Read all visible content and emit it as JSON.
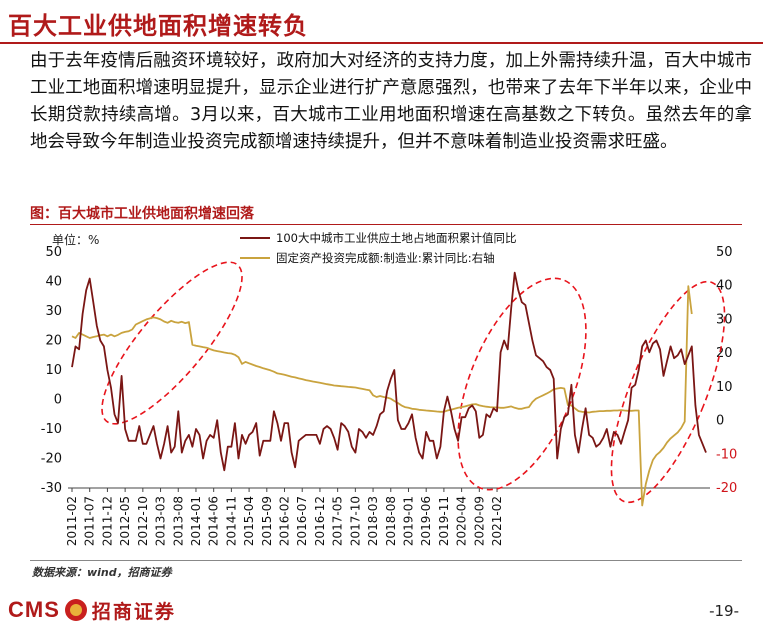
{
  "header": {
    "title": "百大工业供地面积增速转负"
  },
  "body": {
    "paragraph": "由于去年疫情后融资环境较好，政府加大对经济的支持力度，加上外需持续升温，百大中城市工业工地面积增速明显提升，显示企业进行扩产意愿强烈，也带来了去年下半年以来，企业中长期贷款持续高增。3月以来，百大城市工业用地面积增速在高基数之下转负。虽然去年的拿地会导致今年制造业投资完成额增速持续提升，但并不意味着制造业投资需求旺盛。"
  },
  "figure": {
    "caption": "图：百大城市工业供地面积增速回落",
    "source": "数据来源：wind，招商证券"
  },
  "footer": {
    "logo_text": "CMS",
    "logo_name": "招商证券",
    "page_number": "-19-"
  },
  "colors": {
    "series1": "#7a1614",
    "series2": "#c9a33e",
    "ellipse": "#e8141c",
    "accent": "#b01a1a"
  },
  "chart_data": {
    "type": "line",
    "unit_label": "单位：%",
    "x_tick_labels": [
      "2011-02",
      "2011-07",
      "2011-12",
      "2012-05",
      "2012-10",
      "2013-03",
      "2013-08",
      "2014-01",
      "2014-06",
      "2014-11",
      "2015-04",
      "2015-09",
      "2016-02",
      "2016-07",
      "2016-12",
      "2017-05",
      "2017-10",
      "2018-03",
      "2018-08",
      "2019-01",
      "2019-06",
      "2019-11",
      "2020-04",
      "2020-09",
      "2021-02"
    ],
    "x_start": "2011-02",
    "left_axis": {
      "min": -30,
      "max": 50,
      "ticks": [
        -30,
        -20,
        -10,
        0,
        10,
        20,
        30,
        40,
        50
      ]
    },
    "right_axis": {
      "min": -20,
      "max": 50,
      "ticks": [
        -20,
        -10,
        0,
        10,
        20,
        30,
        40,
        50
      ]
    },
    "grid": false,
    "legend_position": "top-center",
    "series": [
      {
        "name": "100大中城市工业供应土地占地面积累计值同比",
        "axis": "left",
        "color": "#7a1614",
        "values": [
          11,
          18,
          17,
          29,
          37,
          41,
          33,
          25,
          20,
          18,
          10,
          4,
          -5,
          -8,
          8,
          -10,
          -14,
          -14,
          -14,
          -9,
          -15,
          -15,
          -12,
          -9,
          -15,
          -20,
          -15,
          -9,
          -18,
          -16,
          -4,
          -18,
          -14,
          -12,
          -16,
          -10,
          -12,
          -20,
          -14,
          -12,
          -13,
          -7,
          -18,
          -24,
          -16,
          -16,
          -8,
          -20,
          -12,
          -15,
          -12,
          -11,
          -8,
          -19,
          -14,
          -14,
          -14,
          -4,
          -8,
          -14,
          -8,
          -8,
          -18,
          -23,
          -14,
          -13,
          -12,
          -12,
          -12,
          -12,
          -15,
          -10,
          -9,
          -10,
          -13,
          -17,
          -8,
          -9,
          -11,
          -16,
          -18,
          -10,
          -11,
          -13,
          -11,
          -12,
          -9,
          -5,
          -4,
          3,
          7,
          10,
          -7,
          -10,
          -10,
          -8,
          -5,
          -13,
          -18,
          -20,
          -11,
          -14,
          -14,
          -20,
          -16,
          -4,
          1,
          -4,
          -10,
          -14,
          -6,
          -6,
          -3,
          -2,
          -4,
          -13,
          -12,
          -5,
          -6,
          -3,
          -4,
          16,
          20,
          17,
          31,
          43,
          37,
          33,
          32,
          26,
          20,
          15,
          14,
          13,
          11,
          10,
          7,
          -20,
          -10,
          -6,
          -5,
          5,
          -12,
          -18,
          -10,
          -3,
          -12,
          -13,
          -16,
          -15,
          -13,
          -10,
          -16,
          -11,
          -12,
          -15,
          -11,
          -7,
          4,
          5,
          10,
          18,
          20,
          16,
          19,
          20,
          17,
          8,
          13,
          18,
          14,
          15,
          17,
          12,
          15,
          18,
          -2,
          -12,
          -15,
          -18
        ]
      },
      {
        "name": "固定资产投资完成额:制造业:累计同比:右轴",
        "axis": "right",
        "color": "#c9a33e",
        "values": [
          25.0,
          24.5,
          26.0,
          25.5,
          25.0,
          24.5,
          24.8,
          25.0,
          25.3,
          25.5,
          25.0,
          25.5,
          25.0,
          25.4,
          26.0,
          26.3,
          26.5,
          27.0,
          28.5,
          29.0,
          29.5,
          30.0,
          30.3,
          30.6,
          30.4,
          30.0,
          29.4,
          29.0,
          29.6,
          29.2,
          29.0,
          29.3,
          28.9,
          29.2,
          22.5,
          22.2,
          22.0,
          21.8,
          21.6,
          21.2,
          20.8,
          20.6,
          20.4,
          20.2,
          20.0,
          19.9,
          19.5,
          18.8,
          16.8,
          17.4,
          17.0,
          16.6,
          16.2,
          15.9,
          15.5,
          15.2,
          14.9,
          14.5,
          14.0,
          13.8,
          13.6,
          13.3,
          13.0,
          12.8,
          12.5,
          12.3,
          12.0,
          11.8,
          11.6,
          11.4,
          11.2,
          11.0,
          10.8,
          10.6,
          10.4,
          10.3,
          10.2,
          10.1,
          10.0,
          9.9,
          9.8,
          9.6,
          9.4,
          9.2,
          9.0,
          7.5,
          7.0,
          7.3,
          7.0,
          6.8,
          6.5,
          5.8,
          5.2,
          4.5,
          4.0,
          3.8,
          3.5,
          3.4,
          3.2,
          3.1,
          3.0,
          2.9,
          2.8,
          2.7,
          2.6,
          2.6,
          3.0,
          3.2,
          3.5,
          3.8,
          4.0,
          4.2,
          4.5,
          4.8,
          4.9,
          4.5,
          4.3,
          4.1,
          4.0,
          3.9,
          3.9,
          3.8,
          3.8,
          4.0,
          4.2,
          3.8,
          3.5,
          3.5,
          3.8,
          4.0,
          5.5,
          6.5,
          7.0,
          7.5,
          8.0,
          8.6,
          9.3,
          9.5,
          9.7,
          9.5,
          4.6,
          4.5,
          3.6,
          2.8,
          2.6,
          2.5,
          2.4,
          2.6,
          2.7,
          2.8,
          2.8,
          2.9,
          2.9,
          3.0,
          3.0,
          3.1,
          3.0,
          2.9,
          2.9,
          3.0,
          3.0,
          -25.2,
          -18.8,
          -14.8,
          -11.7,
          -10.2,
          -9.3,
          -8.1,
          -6.5,
          -5.3,
          -4.4,
          -3.5,
          -2.2,
          -0.3,
          39.9,
          31.6
        ]
      }
    ]
  }
}
